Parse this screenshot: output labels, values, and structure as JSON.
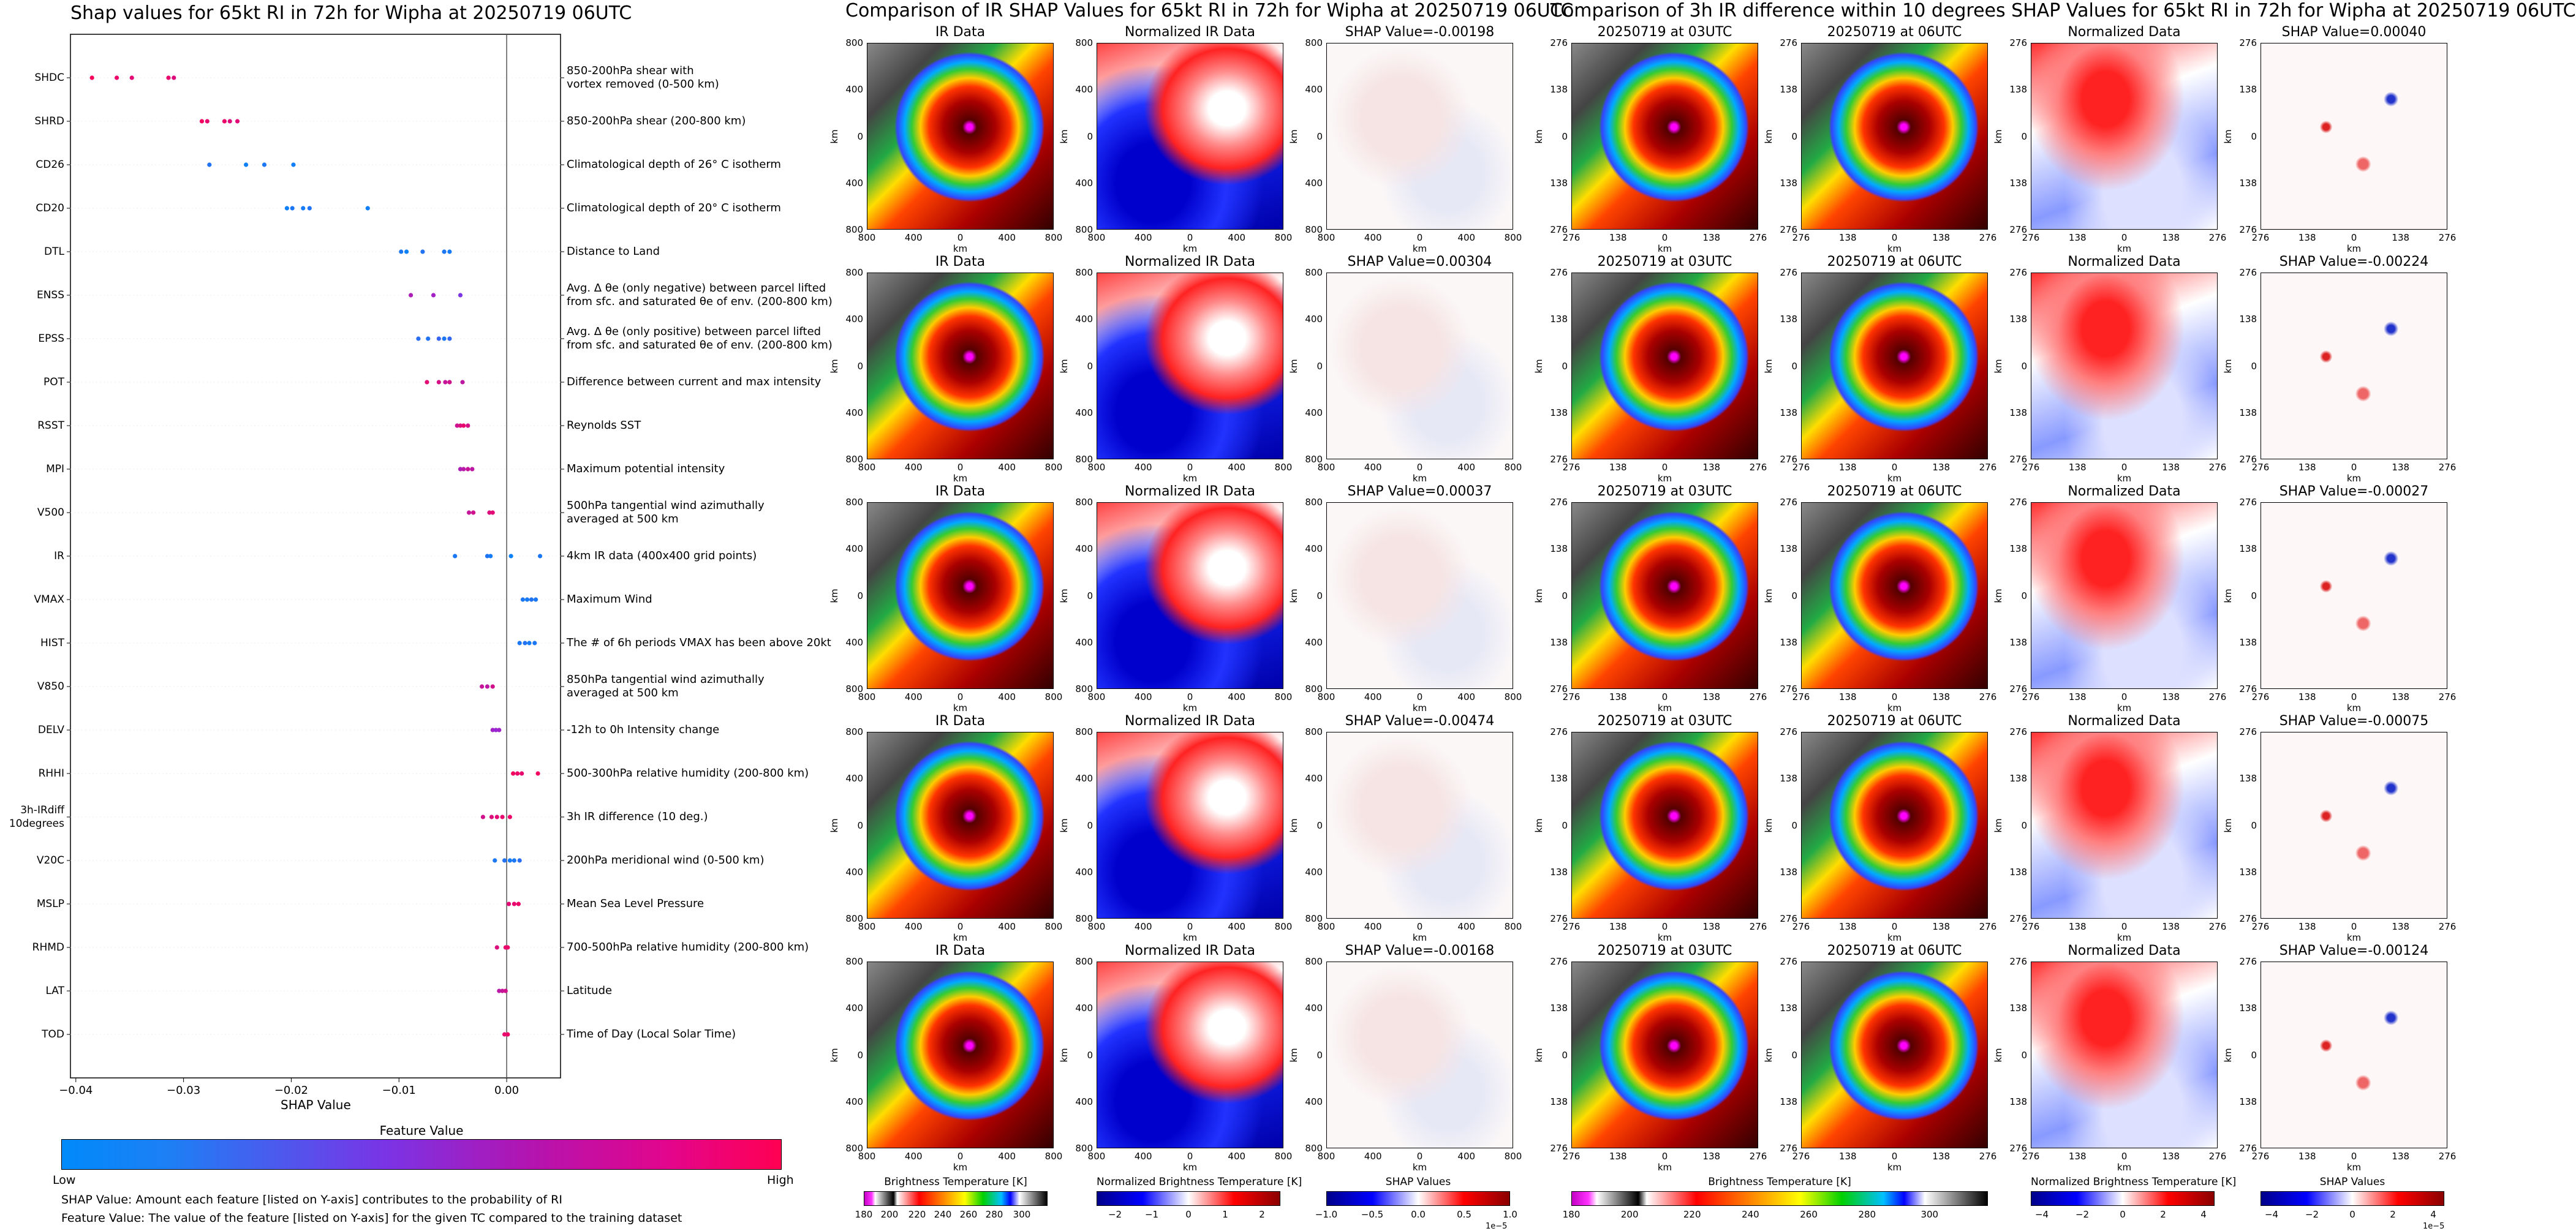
{
  "summary": {
    "title": "Shap values for 65kt RI in 72h for Wipha at 20250719 06UTC",
    "xlabel": "SHAP Value",
    "xticks": [
      "−0.04",
      "−0.03",
      "−0.02",
      "−0.01",
      "0.00"
    ],
    "colorbar_title": "Feature Value",
    "colorbar_low": "Low",
    "colorbar_high": "High",
    "note1": "SHAP Value: Amount each feature [listed on Y-axis] contributes to the probability of RI",
    "note2": "Feature Value: The value of the feature [listed on Y-axis] for the given TC compared to the training dataset"
  },
  "ir_figure": {
    "title": "Comparison of IR SHAP Values for 65kt RI in 72h for Wipha at 20250719 06UTC",
    "col_titles": [
      "IR Data",
      "Normalized IR Data"
    ],
    "shap_titles": [
      "SHAP Value=-0.00198",
      "SHAP Value=0.00304",
      "SHAP Value=0.00037",
      "SHAP Value=-0.00474",
      "SHAP Value=-0.00168"
    ],
    "ticks": [
      "800",
      "400",
      "0",
      "400",
      "800"
    ],
    "axis_label": "km",
    "cb1_title": "Brightness Temperature [K]",
    "cb1_ticks": [
      "180",
      "200",
      "220",
      "240",
      "260",
      "280",
      "300"
    ],
    "cb2_title": "Normalized Brightness Temperature [K]",
    "cb2_ticks": [
      "−2",
      "−1",
      "0",
      "1",
      "2"
    ],
    "cb3_title": "SHAP Values",
    "cb3_ticks": [
      "−1.0",
      "−0.5",
      "0.0",
      "0.5",
      "1.0"
    ],
    "cb3_exp": "1e−5"
  },
  "diff_figure": {
    "title": "Comparison of 3h IR difference within 10 degrees SHAP Values for 65kt RI in 72h for Wipha at 20250719 06UTC",
    "col_titles": [
      "20250719 at 03UTC",
      "20250719 at 06UTC",
      "Normalized Data"
    ],
    "shap_titles": [
      "SHAP Value=0.00040",
      "SHAP Value=-0.00224",
      "SHAP Value=-0.00027",
      "SHAP Value=-0.00075",
      "SHAP Value=-0.00124"
    ],
    "ticks": [
      "276",
      "138",
      "0",
      "138",
      "276"
    ],
    "axis_label": "km",
    "cb1_title": "Brightness Temperature [K]",
    "cb1_ticks": [
      "180",
      "200",
      "220",
      "240",
      "260",
      "280",
      "300"
    ],
    "cb2_title": "Normalized Brightness Temperature [K]",
    "cb2_ticks": [
      "−4",
      "−2",
      "0",
      "2",
      "4"
    ],
    "cb3_title": "SHAP Values",
    "cb3_ticks": [
      "−4",
      "−2",
      "0",
      "2",
      "4"
    ],
    "cb3_exp": "1e−5"
  },
  "chart_data": {
    "type": "scatter",
    "title": "Shap values for 65kt RI in 72h for Wipha at 20250719 06UTC",
    "xlabel": "SHAP Value",
    "xlim": [
      -0.0405,
      0.005
    ],
    "colors": {
      "low": "#008afa",
      "mid": "#8a2be2",
      "high": "#ff0052"
    },
    "features": [
      {
        "name": "SHDC",
        "label": "850-200hPa shear with\nvortex removed (0-500 km)",
        "points": [
          [
            -0.0385,
            0.97
          ],
          [
            -0.0362,
            0.92
          ],
          [
            -0.0348,
            0.88
          ],
          [
            -0.0314,
            0.9
          ],
          [
            -0.0309,
            0.86
          ]
        ]
      },
      {
        "name": "SHRD",
        "label": "850-200hPa shear (200-800 km)",
        "points": [
          [
            -0.0283,
            0.95
          ],
          [
            -0.0278,
            0.9
          ],
          [
            -0.0262,
            0.92
          ],
          [
            -0.0257,
            0.85
          ],
          [
            -0.025,
            0.88
          ]
        ]
      },
      {
        "name": "CD26",
        "label": "Climatological depth of 26° C isotherm",
        "points": [
          [
            -0.0276,
            0.12
          ],
          [
            -0.0242,
            0.05
          ],
          [
            -0.0225,
            0.1
          ],
          [
            -0.0198,
            0.06
          ]
        ]
      },
      {
        "name": "CD20",
        "label": "Climatological depth of 20° C isotherm",
        "points": [
          [
            -0.0204,
            0.05
          ],
          [
            -0.0199,
            0.1
          ],
          [
            -0.0189,
            0.08
          ],
          [
            -0.0183,
            0.12
          ],
          [
            -0.0129,
            0.06
          ]
        ]
      },
      {
        "name": "DTL",
        "label": "Distance to Land",
        "points": [
          [
            -0.0098,
            0.1
          ],
          [
            -0.0093,
            0.05
          ],
          [
            -0.0078,
            0.12
          ],
          [
            -0.0058,
            0.1
          ],
          [
            -0.0053,
            0.08
          ]
        ]
      },
      {
        "name": "ENSS",
        "label": "Avg. Δ θe (only negative) between parcel lifted\nfrom sfc. and saturated θe of env. (200-800 km)",
        "points": [
          [
            -0.0089,
            0.65
          ],
          [
            -0.0068,
            0.6
          ],
          [
            -0.0043,
            0.45
          ]
        ]
      },
      {
        "name": "EPSS",
        "label": "Avg. Δ θe (only positive) between parcel lifted\nfrom sfc. and saturated θe of env. (200-800 km)",
        "points": [
          [
            -0.0082,
            0.15
          ],
          [
            -0.0073,
            0.12
          ],
          [
            -0.0063,
            0.2
          ],
          [
            -0.0058,
            0.1
          ],
          [
            -0.0053,
            0.18
          ]
        ]
      },
      {
        "name": "POT",
        "label": "Difference between current and max intensity",
        "points": [
          [
            -0.0074,
            0.88
          ],
          [
            -0.0063,
            0.82
          ],
          [
            -0.0057,
            0.75
          ],
          [
            -0.0053,
            0.8
          ],
          [
            -0.0041,
            0.72
          ]
        ]
      },
      {
        "name": "RSST",
        "label": "Reynolds SST",
        "points": [
          [
            -0.0046,
            0.78
          ],
          [
            -0.0043,
            0.85
          ],
          [
            -0.004,
            0.9
          ],
          [
            -0.0036,
            0.82
          ]
        ]
      },
      {
        "name": "MPI",
        "label": "Maximum potential intensity",
        "points": [
          [
            -0.0043,
            0.65
          ],
          [
            -0.004,
            0.7
          ],
          [
            -0.0036,
            0.75
          ],
          [
            -0.0032,
            0.72
          ]
        ]
      },
      {
        "name": "V500",
        "label": "500hPa tangential wind azimuthally\naveraged at 500 km",
        "points": [
          [
            -0.0035,
            0.75
          ],
          [
            -0.0031,
            0.8
          ],
          [
            -0.0016,
            0.85
          ],
          [
            -0.0013,
            0.88
          ]
        ]
      },
      {
        "name": "IR",
        "label": "4km IR data (400x400 grid points)",
        "points": [
          [
            -0.0048,
            0.1
          ],
          [
            -0.0018,
            0.12
          ],
          [
            -0.0015,
            0.08
          ],
          [
            0.0004,
            0.05
          ],
          [
            0.0031,
            0.1
          ]
        ]
      },
      {
        "name": "VMAX",
        "label": "Maximum Wind",
        "points": [
          [
            0.0015,
            0.1
          ],
          [
            0.0019,
            0.08
          ],
          [
            0.0023,
            0.12
          ],
          [
            0.0027,
            0.1
          ]
        ]
      },
      {
        "name": "HIST",
        "label": "The # of 6h periods VMAX has been above 20kt",
        "points": [
          [
            0.0012,
            0.1
          ],
          [
            0.0017,
            0.12
          ],
          [
            0.0021,
            0.08
          ],
          [
            0.0026,
            0.1
          ]
        ]
      },
      {
        "name": "V850",
        "label": "850hPa tangential wind azimuthally\naveraged at 500 km",
        "points": [
          [
            -0.0023,
            0.75
          ],
          [
            -0.0018,
            0.72
          ],
          [
            -0.0013,
            0.8
          ]
        ]
      },
      {
        "name": "DELV",
        "label": "-12h to 0h Intensity change",
        "points": [
          [
            -0.0013,
            0.6
          ],
          [
            -0.001,
            0.55
          ],
          [
            -0.0007,
            0.58
          ]
        ]
      },
      {
        "name": "RHHI",
        "label": "500-300hPa relative humidity (200-800 km)",
        "points": [
          [
            0.0006,
            0.95
          ],
          [
            0.001,
            0.92
          ],
          [
            0.0014,
            0.9
          ],
          [
            0.0029,
            0.95
          ]
        ]
      },
      {
        "name": "3h-IRdiff\n10degrees",
        "label": "3h IR difference (10 deg.)",
        "points": [
          [
            -0.0022,
            0.8
          ],
          [
            -0.0014,
            0.85
          ],
          [
            -0.0009,
            0.88
          ],
          [
            -0.0004,
            0.9
          ],
          [
            0.0003,
            0.92
          ]
        ]
      },
      {
        "name": "V20C",
        "label": "200hPa meridional wind (0-500 km)",
        "points": [
          [
            -0.0011,
            0.1
          ],
          [
            -0.0002,
            0.12
          ],
          [
            0.0003,
            0.08
          ],
          [
            0.0007,
            0.1
          ],
          [
            0.0012,
            0.15
          ]
        ]
      },
      {
        "name": "MSLP",
        "label": "Mean Sea Level Pressure",
        "points": [
          [
            0.0002,
            0.88
          ],
          [
            0.0007,
            0.9
          ],
          [
            0.0011,
            0.92
          ]
        ]
      },
      {
        "name": "RHMD",
        "label": "700-500hPa relative humidity (200-800 km)",
        "points": [
          [
            -0.0009,
            0.85
          ],
          [
            -0.0001,
            0.9
          ],
          [
            0.0001,
            0.92
          ]
        ]
      },
      {
        "name": "LAT",
        "label": "Latitude",
        "points": [
          [
            -0.0007,
            0.7
          ],
          [
            -0.0004,
            0.75
          ],
          [
            -0.0001,
            0.8
          ]
        ]
      },
      {
        "name": "TOD",
        "label": "Time of Day (Local Solar Time)",
        "points": [
          [
            -0.0002,
            0.9
          ],
          [
            0.0001,
            0.92
          ]
        ]
      }
    ]
  }
}
